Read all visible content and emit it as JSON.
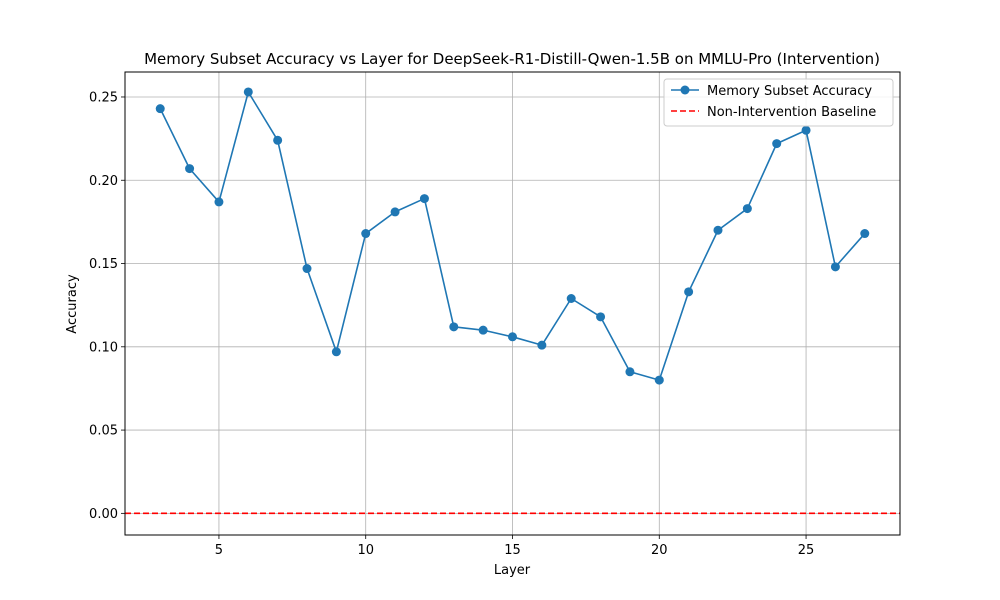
{
  "chart_data": {
    "type": "line",
    "title": "Memory Subset Accuracy vs Layer for DeepSeek-R1-Distill-Qwen-1.5B on MMLU-Pro (Intervention)",
    "xlabel": "Layer",
    "ylabel": "Accuracy",
    "xlim": [
      1.8,
      28.2
    ],
    "ylim": [
      -0.013,
      0.265
    ],
    "x_ticks": [
      5,
      10,
      15,
      20,
      25
    ],
    "x_tick_labels": [
      "5",
      "10",
      "15",
      "20",
      "25"
    ],
    "y_ticks": [
      0.0,
      0.05,
      0.1,
      0.15,
      0.2,
      0.25
    ],
    "y_tick_labels": [
      "0.00",
      "0.05",
      "0.10",
      "0.15",
      "0.20",
      "0.25"
    ],
    "grid": true,
    "legend_position": "top-right",
    "x": [
      3,
      4,
      5,
      6,
      7,
      8,
      9,
      10,
      11,
      12,
      13,
      14,
      15,
      16,
      17,
      18,
      19,
      20,
      21,
      22,
      23,
      24,
      25,
      26,
      27
    ],
    "series": [
      {
        "name": "Memory Subset Accuracy",
        "style": "line-marker",
        "color": "#1f77b4",
        "values": [
          0.243,
          0.207,
          0.187,
          0.253,
          0.224,
          0.147,
          0.097,
          0.168,
          0.181,
          0.189,
          0.112,
          0.11,
          0.106,
          0.101,
          0.129,
          0.118,
          0.085,
          0.08,
          0.133,
          0.17,
          0.183,
          0.222,
          0.23,
          0.148,
          0.168
        ]
      },
      {
        "name": "Non-Intervention Baseline",
        "style": "dashed-hline",
        "color": "#ff0000",
        "value": 0.0
      }
    ]
  }
}
